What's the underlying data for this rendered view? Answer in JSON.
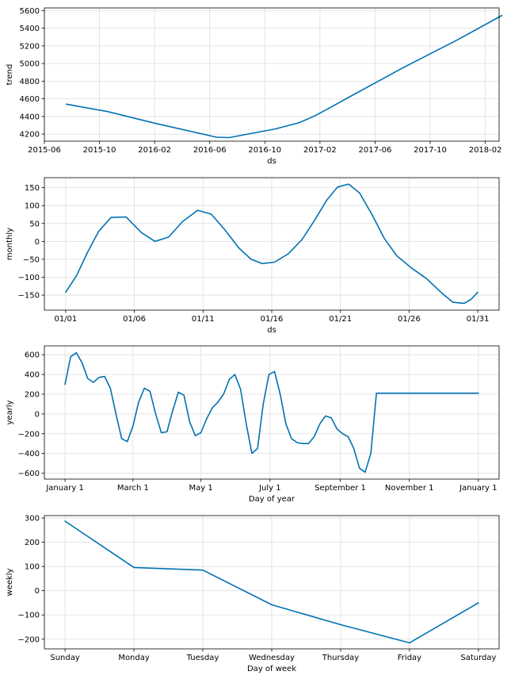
{
  "chart_data": [
    {
      "type": "line",
      "xlabel": "ds",
      "ylabel": "trend",
      "xlim": [
        0,
        33
      ],
      "ylim": [
        4120,
        5630
      ],
      "xticks": [
        {
          "v": 0,
          "label": "2015-06"
        },
        {
          "v": 4,
          "label": "2015-10"
        },
        {
          "v": 8,
          "label": "2016-02"
        },
        {
          "v": 12,
          "label": "2016-06"
        },
        {
          "v": 16,
          "label": "2016-10"
        },
        {
          "v": 20,
          "label": "2017-02"
        },
        {
          "v": 24,
          "label": "2017-06"
        },
        {
          "v": 28,
          "label": "2017-10"
        },
        {
          "v": 32,
          "label": "2018-02"
        }
      ],
      "yticks": [
        4200,
        4400,
        4600,
        4800,
        5000,
        5200,
        5400,
        5600
      ],
      "series": [
        {
          "name": "trend",
          "x": [
            1.6,
            4.6,
            8.1,
            12.5,
            13.4,
            16.8,
            18.5,
            19.6,
            20.5,
            22.0,
            26.0,
            30.0,
            33.2
          ],
          "y": [
            4540,
            4455,
            4320,
            4165,
            4160,
            4260,
            4330,
            4405,
            4480,
            4610,
            4950,
            5270,
            5545
          ]
        }
      ]
    },
    {
      "type": "line",
      "xlabel": "ds",
      "ylabel": "monthly",
      "xlim": [
        -1.55,
        31.55
      ],
      "ylim": [
        -192,
        178
      ],
      "xticks": [
        {
          "v": 0,
          "label": "01/01"
        },
        {
          "v": 5,
          "label": "01/06"
        },
        {
          "v": 10,
          "label": "01/11"
        },
        {
          "v": 15,
          "label": "01/16"
        },
        {
          "v": 20,
          "label": "01/21"
        },
        {
          "v": 25,
          "label": "01/26"
        },
        {
          "v": 30,
          "label": "01/31"
        }
      ],
      "yticks": [
        -150,
        -100,
        -50,
        0,
        50,
        100,
        150
      ],
      "series": [
        {
          "name": "monthly",
          "x": [
            0,
            0.8,
            1.6,
            2.4,
            3.3,
            4.4,
            5.5,
            6.5,
            7.5,
            8.5,
            9.6,
            10.6,
            11.6,
            12.6,
            13.5,
            14.3,
            15.2,
            16.2,
            17.2,
            18.1,
            19.0,
            19.8,
            20.6,
            21.4,
            22.3,
            23.2,
            24.1,
            25.2,
            26.3,
            27.4,
            28.2,
            29.0,
            29.5,
            30.0
          ],
          "y": [
            -142,
            -95,
            -30,
            28,
            67,
            68,
            25,
            0,
            12,
            55,
            87,
            76,
            32,
            -18,
            -50,
            -62,
            -58,
            -35,
            5,
            58,
            115,
            152,
            160,
            135,
            75,
            8,
            -40,
            -75,
            -105,
            -145,
            -170,
            -173,
            -162,
            -142
          ]
        }
      ]
    },
    {
      "type": "line",
      "xlabel": "Day of year",
      "ylabel": "yearly",
      "xlim": [
        -18.25,
        383.25
      ],
      "ylim": [
        -660,
        690
      ],
      "xticks": [
        {
          "v": 0,
          "label": "January 1"
        },
        {
          "v": 60,
          "label": "March 1"
        },
        {
          "v": 120,
          "label": "May 1"
        },
        {
          "v": 181,
          "label": "July 1"
        },
        {
          "v": 243,
          "label": "September 1"
        },
        {
          "v": 304,
          "label": "November 1"
        },
        {
          "v": 365,
          "label": "January 1"
        }
      ],
      "yticks": [
        -600,
        -400,
        -200,
        0,
        200,
        400,
        600
      ],
      "series": [
        {
          "name": "yearly",
          "x": [
            0,
            5,
            10,
            15,
            20,
            25,
            30,
            35,
            40,
            45,
            50,
            55,
            60,
            65,
            70,
            75,
            80,
            85,
            90,
            95,
            100,
            105,
            110,
            115,
            120,
            125,
            130,
            135,
            140,
            145,
            150,
            155,
            160,
            165,
            170,
            175,
            180,
            185,
            190,
            195,
            200,
            205,
            210,
            215,
            220,
            225,
            230,
            235,
            240,
            245,
            250,
            255,
            260,
            265,
            270,
            275,
            280,
            285,
            290,
            295,
            300,
            305,
            310,
            315,
            320,
            325,
            330,
            335,
            340,
            345,
            350,
            355,
            360,
            365
          ],
          "y": [
            300,
            580,
            620,
            520,
            360,
            320,
            370,
            380,
            260,
            0,
            -250,
            -280,
            -120,
            120,
            260,
            230,
            0,
            -190,
            -180,
            30,
            220,
            190,
            -80,
            -220,
            -190,
            -50,
            60,
            120,
            200,
            350,
            400,
            250,
            -100,
            -400,
            -350,
            100,
            400,
            430,
            200,
            -100,
            -250,
            -290,
            -300,
            -300,
            -230,
            -100,
            -20,
            -40,
            -150,
            -200,
            -230,
            -350,
            -550,
            -590,
            -400,
            210,
            210,
            210,
            210,
            210,
            210,
            210,
            210,
            210,
            210,
            210,
            210,
            210,
            210,
            210,
            210,
            210,
            210,
            210
          ]
        }
      ]
    },
    {
      "type": "line",
      "xlabel": "Day of week",
      "ylabel": "weekly",
      "xlim": [
        -0.3,
        6.3
      ],
      "ylim": [
        -240,
        310
      ],
      "xticks": [
        {
          "v": 0,
          "label": "Sunday"
        },
        {
          "v": 1,
          "label": "Monday"
        },
        {
          "v": 2,
          "label": "Tuesday"
        },
        {
          "v": 3,
          "label": "Wednesday"
        },
        {
          "v": 4,
          "label": "Thursday"
        },
        {
          "v": 5,
          "label": "Friday"
        },
        {
          "v": 6,
          "label": "Saturday"
        }
      ],
      "yticks": [
        -200,
        -100,
        0,
        100,
        200,
        300
      ],
      "series": [
        {
          "name": "weekly",
          "x": [
            0,
            1,
            2,
            3,
            4,
            5,
            6
          ],
          "y": [
            287,
            96,
            85,
            -58,
            -140,
            -215,
            -50
          ]
        }
      ]
    }
  ],
  "colors": {
    "line": "#0072b2",
    "grid": "#dddddd",
    "axis": "#000000"
  }
}
